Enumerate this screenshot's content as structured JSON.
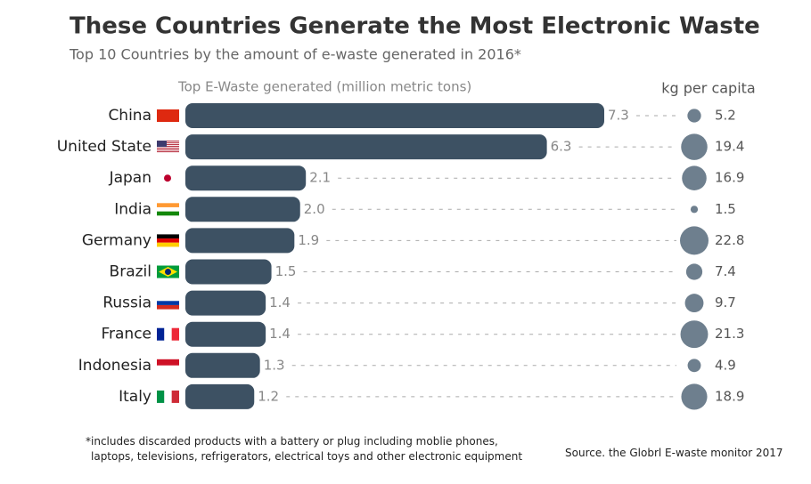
{
  "chart_data": {
    "type": "bar",
    "title": "These Countries Generate the Most Electronic Waste",
    "subtitle": "Top 10 Countries by the amount of e-waste generated in 2016*",
    "categories": [
      "China",
      "United State",
      "Japan",
      "India",
      "Germany",
      "Brazil",
      "Russia",
      "France",
      "Indonesia",
      "Italy"
    ],
    "series": [
      {
        "name": "Top E-Waste generated (million metric tons)",
        "color": "#3d5163",
        "values": [
          7.3,
          6.3,
          2.1,
          2.0,
          1.9,
          1.5,
          1.4,
          1.4,
          1.3,
          1.2
        ],
        "value_labels": [
          "7.3",
          "6.3",
          "2.1",
          "2.0",
          "1.9",
          "1.5",
          "1.4",
          "1.4",
          "1.3",
          "1.2"
        ]
      },
      {
        "name": "kg per capita",
        "color": "#6e7f8e",
        "values": [
          5.2,
          19.4,
          16.9,
          1.5,
          22.8,
          7.4,
          9.7,
          21.3,
          4.9,
          18.9
        ]
      }
    ],
    "footnote": "*includes discarded products with a battery or plug including moblie phones, laptops, televisions, refrigerators, electrical toys and other electronic equipment",
    "source": "Source. the Globrl E-waste monitor 2017"
  }
}
